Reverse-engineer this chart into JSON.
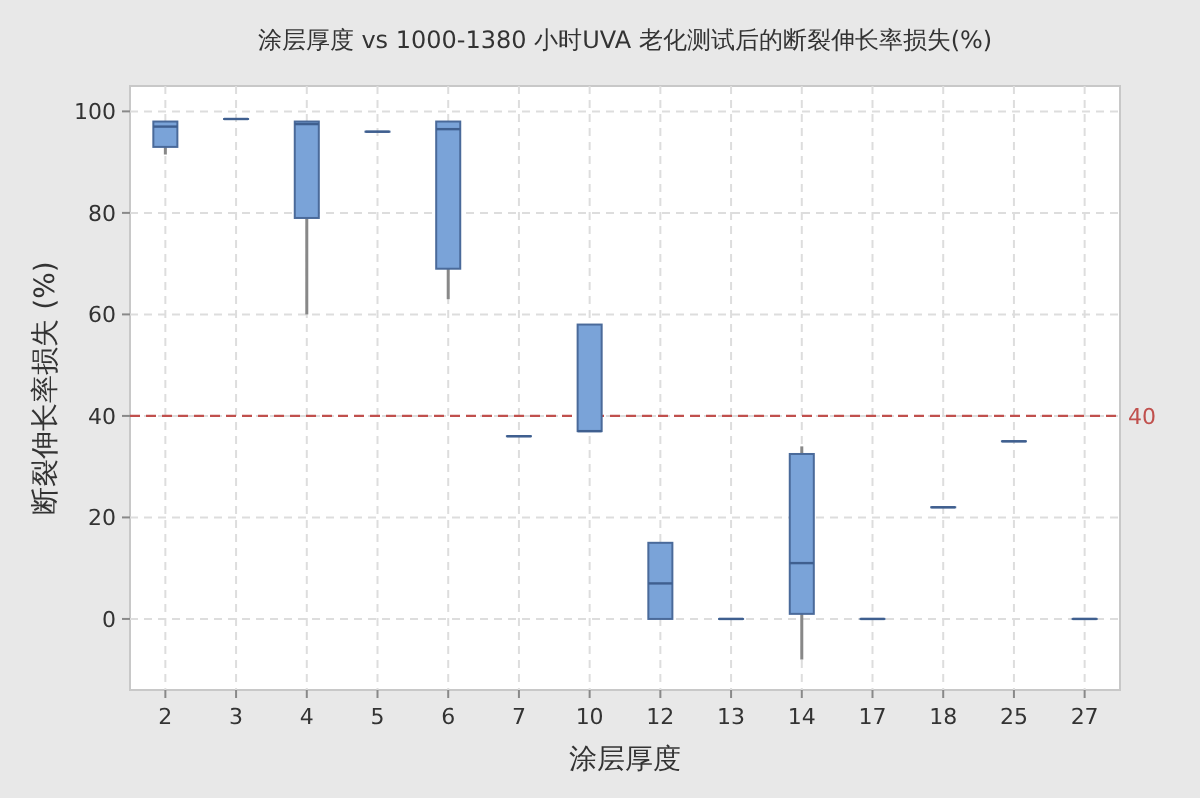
{
  "chart_data": {
    "type": "box",
    "title": "涂层厚度 vs 1000-1380 小时UVA 老化测试后的断裂伸长率损失(%)",
    "xlabel": "涂层厚度",
    "ylabel": "断裂伸长率损失 (%)",
    "categories": [
      "2",
      "3",
      "4",
      "5",
      "6",
      "7",
      "10",
      "12",
      "13",
      "14",
      "17",
      "18",
      "25",
      "27"
    ],
    "color": "#7aa3d8",
    "boxes": [
      {
        "low": 91.5,
        "q1": 93,
        "median": 97,
        "q3": 98,
        "high": 98
      },
      {
        "low": 98.5,
        "q1": 98.5,
        "median": 98.5,
        "q3": 98.5,
        "high": 98.5
      },
      {
        "low": 60,
        "q1": 79,
        "median": 97.5,
        "q3": 98,
        "high": 98
      },
      {
        "low": 96,
        "q1": 96,
        "median": 96,
        "q3": 96,
        "high": 96
      },
      {
        "low": 63,
        "q1": 69,
        "median": 96.5,
        "q3": 98,
        "high": 98
      },
      {
        "low": 36,
        "q1": 36,
        "median": 36,
        "q3": 36,
        "high": 36
      },
      {
        "low": 37,
        "q1": 37,
        "median": 37,
        "q3": 58,
        "high": 58
      },
      {
        "low": 0,
        "q1": 0,
        "median": 7,
        "q3": 15,
        "high": 15
      },
      {
        "low": 0,
        "q1": 0,
        "median": 0,
        "q3": 0,
        "high": 0
      },
      {
        "low": -8,
        "q1": 1,
        "median": 11,
        "q3": 32.5,
        "high": 34
      },
      {
        "low": 0,
        "q1": 0,
        "median": 0,
        "q3": 0,
        "high": 0
      },
      {
        "low": 22,
        "q1": 22,
        "median": 22,
        "q3": 22,
        "high": 22
      },
      {
        "low": 35,
        "q1": 35,
        "median": 35,
        "q3": 35,
        "high": 35
      },
      {
        "low": 0,
        "q1": 0,
        "median": 0,
        "q3": 0,
        "high": 0
      }
    ],
    "ylim": [
      -14,
      105
    ],
    "yticks": [
      0,
      20,
      40,
      60,
      80,
      100
    ],
    "grid": true,
    "ref_lines": [
      {
        "axis": "y",
        "value": 40,
        "label": "40",
        "color": "#c0504d",
        "line_style": "dashed"
      }
    ]
  }
}
